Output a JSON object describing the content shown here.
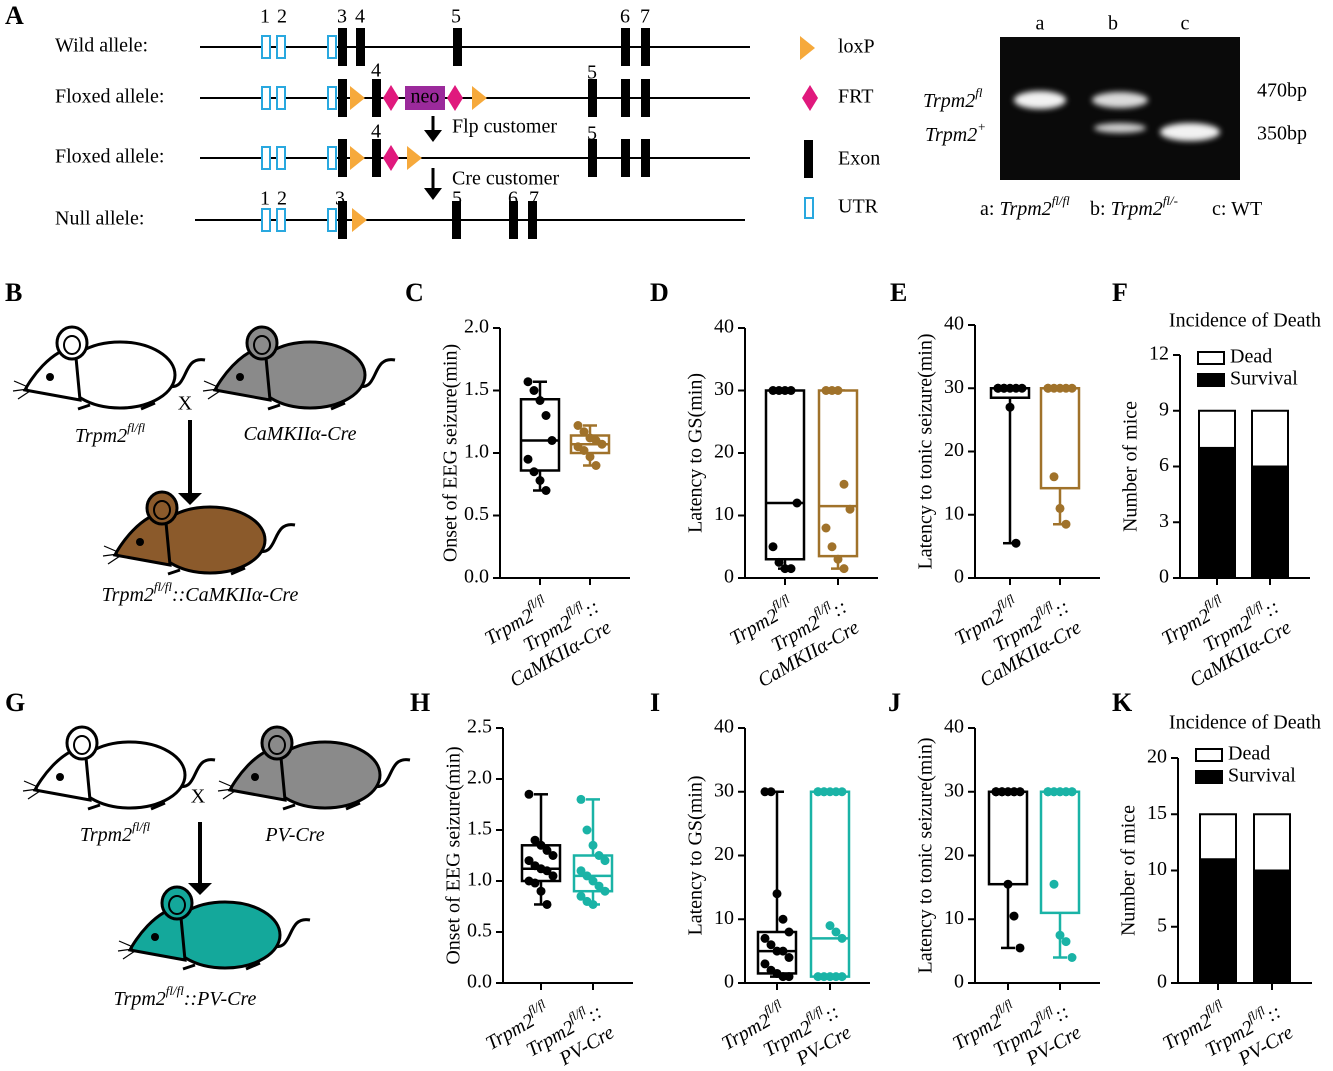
{
  "panel_A": {
    "letter": "A",
    "rows": [
      "Wild allele:",
      "Floxed allele:",
      "Floxed allele:",
      "Null allele:"
    ],
    "exon_labels": [
      [
        "1",
        "2",
        "3",
        "4",
        "5",
        "6",
        "7"
      ],
      [
        "4",
        "5"
      ],
      [
        "4",
        "5"
      ],
      [
        "1",
        "2",
        "3",
        "5",
        "6",
        "7"
      ]
    ],
    "neo": "neo",
    "steps": [
      "Flp customer",
      "Cre customer"
    ],
    "legend": [
      "loxP",
      "FRT",
      "Exon",
      "UTR"
    ],
    "gel": {
      "lanes": [
        "a",
        "b",
        "c"
      ],
      "bands": [
        {
          "name": "Trpm2",
          "sup": "fl"
        },
        {
          "name": "Trpm2",
          "sup": "+"
        }
      ],
      "sizes": [
        "470bp",
        "350bp"
      ],
      "key": [
        {
          "prefix": "a: ",
          "name": "Trpm2",
          "sup": "fl/fl"
        },
        {
          "prefix": "b: ",
          "name": "Trpm2",
          "sup": "fl/-"
        },
        {
          "text": "c: WT"
        }
      ]
    }
  },
  "panel_B": {
    "letter": "B",
    "parents": [
      {
        "name": "Trpm2",
        "sup": "fl/fl"
      },
      {
        "name": "CaMKIIα-Cre"
      }
    ],
    "cross": "X",
    "offspring": {
      "name": "Trpm2",
      "sup": "fl/fl",
      "rest": "::CaMKIIα-Cre"
    }
  },
  "panel_G": {
    "letter": "G",
    "parents": [
      {
        "name": "Trpm2",
        "sup": "fl/fl"
      },
      {
        "name": "PV-Cre"
      }
    ],
    "cross": "X",
    "offspring": {
      "name": "Trpm2",
      "sup": "fl/fl",
      "rest": "::PV-Cre"
    }
  },
  "chart_data": [
    {
      "type": "box",
      "letter": "C",
      "ylabel": "Onset of EEG seizure(min)",
      "ylim": [
        0,
        2
      ],
      "yticks": [
        {
          "value": 0,
          "label": "0.0"
        },
        {
          "value": 0.5,
          "label": "0.5"
        },
        {
          "value": 1,
          "label": "1.0"
        },
        {
          "value": 1.5,
          "label": "1.5"
        },
        {
          "value": 2,
          "label": "2.0"
        }
      ],
      "categories": [
        {
          "name": "Trpm2",
          "sup": "fl/fl"
        },
        {
          "name": "Trpm2",
          "sup": "fl/fl",
          "rest": "::",
          "line2": "CaMKIIα-Cre"
        }
      ],
      "groups": [
        {
          "color": "#000000",
          "min": 0.7,
          "q1": 0.86,
          "median": 1.1,
          "q3": 1.43,
          "max": 1.57,
          "points": [
            1.57,
            1.5,
            1.42,
            1.3,
            1.1,
            0.95,
            0.85,
            0.78,
            0.7
          ]
        },
        {
          "color": "#a0722a",
          "min": 0.9,
          "q1": 1.0,
          "median": 1.07,
          "q3": 1.14,
          "max": 1.22,
          "points": [
            1.22,
            1.17,
            1.12,
            1.1,
            1.07,
            1.05,
            1.02,
            0.97,
            0.9
          ]
        }
      ]
    },
    {
      "type": "box",
      "letter": "D",
      "ylabel": "Latency to GS(min)",
      "ylim": [
        0,
        40
      ],
      "yticks": [
        0,
        10,
        20,
        30,
        40
      ],
      "categories": [
        {
          "name": "Trpm2",
          "sup": "fl/fl"
        },
        {
          "name": "Trpm2",
          "sup": "fl/fl",
          "rest": "::",
          "line2": "CaMKIIα-Cre"
        }
      ],
      "groups": [
        {
          "color": "#000000",
          "min": 1.5,
          "q1": 3,
          "median": 12,
          "q3": 30,
          "max": 30,
          "points": [
            30,
            30,
            30,
            30,
            12,
            5,
            2.5,
            1.5,
            1.5
          ]
        },
        {
          "color": "#a0722a",
          "min": 1.5,
          "q1": 3.5,
          "median": 11.5,
          "q3": 30,
          "max": 30,
          "points": [
            30,
            30,
            30,
            15,
            11,
            8,
            5,
            3,
            1.5
          ]
        }
      ]
    },
    {
      "type": "box",
      "letter": "E",
      "ylabel": "Latency to tonic seizure(min)",
      "ylim": [
        0,
        40
      ],
      "yticks": [
        0,
        10,
        20,
        30,
        40
      ],
      "categories": [
        {
          "name": "Trpm2",
          "sup": "fl/fl"
        },
        {
          "name": "Trpm2",
          "sup": "fl/fl",
          "rest": "::",
          "line2": "CaMKIIα-Cre"
        }
      ],
      "groups": [
        {
          "color": "#000000",
          "min": 5.5,
          "q1": 28.5,
          "median": 30,
          "q3": 30,
          "max": 30,
          "points": [
            30,
            30,
            30,
            30,
            30,
            30,
            30,
            27,
            5.5
          ]
        },
        {
          "color": "#a0722a",
          "min": 8.5,
          "q1": 14.2,
          "median": 30,
          "q3": 30,
          "max": 30,
          "points": [
            30,
            30,
            30,
            30,
            30,
            30,
            16,
            11,
            8.5
          ]
        }
      ]
    },
    {
      "type": "stacked_bar",
      "letter": "F",
      "title": "Incidence of Death",
      "ylabel": "Number of mice",
      "ylim": [
        0,
        12
      ],
      "yticks": [
        0,
        3,
        6,
        9,
        12
      ],
      "categories": [
        {
          "name": "Trpm2",
          "sup": "fl/fl"
        },
        {
          "name": "Trpm2",
          "sup": "fl/fl",
          "rest": "::",
          "line2": "CaMKIIα-Cre"
        }
      ],
      "series": [
        {
          "name": "Survival",
          "color": "#000000",
          "values": [
            7,
            6
          ]
        },
        {
          "name": "Dead",
          "color": "#ffffff",
          "values": [
            2,
            3
          ]
        }
      ]
    },
    {
      "type": "box",
      "letter": "H",
      "ylabel": "Onset of EEG seizure(min)",
      "ylim": [
        0,
        2.5
      ],
      "yticks": [
        {
          "value": 0,
          "label": "0.0"
        },
        {
          "value": 0.5,
          "label": "0.5"
        },
        {
          "value": 1,
          "label": "1.0"
        },
        {
          "value": 1.5,
          "label": "1.5"
        },
        {
          "value": 2,
          "label": "2.0"
        },
        {
          "value": 2.5,
          "label": "2.5"
        }
      ],
      "categories": [
        {
          "name": "Trpm2",
          "sup": "fl/fl"
        },
        {
          "name": "Trpm2",
          "sup": "fl/fl",
          "rest": "::",
          "line2": "PV-Cre"
        }
      ],
      "groups": [
        {
          "color": "#000000",
          "min": 0.77,
          "q1": 1.0,
          "median": 1.12,
          "q3": 1.35,
          "max": 1.85,
          "points": [
            1.85,
            1.4,
            1.35,
            1.3,
            1.25,
            1.2,
            1.15,
            1.12,
            1.1,
            1.05,
            1.0,
            0.98,
            0.9,
            0.77
          ]
        },
        {
          "color": "#1ab3a6",
          "min": 0.77,
          "q1": 0.9,
          "median": 1.05,
          "q3": 1.25,
          "max": 1.8,
          "points": [
            1.8,
            1.5,
            1.35,
            1.25,
            1.2,
            1.1,
            1.05,
            1.0,
            0.95,
            0.9,
            0.85,
            0.8,
            0.77
          ]
        }
      ]
    },
    {
      "type": "box",
      "letter": "I",
      "ylabel": "Latency to GS(min)",
      "ylim": [
        0,
        40
      ],
      "yticks": [
        0,
        10,
        20,
        30,
        40
      ],
      "categories": [
        {
          "name": "Trpm2",
          "sup": "fl/fl"
        },
        {
          "name": "Trpm2",
          "sup": "fl/fl",
          "rest": "::",
          "line2": "PV-Cre"
        }
      ],
      "groups": [
        {
          "color": "#000000",
          "min": 1,
          "q1": 1.5,
          "median": 5,
          "q3": 8,
          "max": 30,
          "points": [
            30,
            30,
            14,
            10,
            8,
            7,
            6,
            5,
            5,
            4,
            3,
            2,
            1.5,
            1,
            1
          ]
        },
        {
          "color": "#1ab3a6",
          "min": 1,
          "q1": 1,
          "median": 7,
          "q3": 30,
          "max": 30,
          "points": [
            30,
            30,
            30,
            30,
            30,
            30,
            30,
            9,
            8,
            7,
            1,
            1,
            1,
            1,
            1
          ]
        }
      ]
    },
    {
      "type": "box",
      "letter": "J",
      "ylabel": "Latency to tonic seizure(min)",
      "ylim": [
        0,
        40
      ],
      "yticks": [
        0,
        10,
        20,
        30,
        40
      ],
      "categories": [
        {
          "name": "Trpm2",
          "sup": "fl/fl"
        },
        {
          "name": "Trpm2",
          "sup": "fl/fl",
          "rest": "::",
          "line2": "PV-Cre"
        }
      ],
      "groups": [
        {
          "color": "#000000",
          "min": 5.5,
          "q1": 15.5,
          "median": 30,
          "q3": 30,
          "max": 30,
          "points": [
            30,
            30,
            30,
            30,
            30,
            30,
            30,
            30,
            30,
            30,
            30,
            30,
            15.5,
            10.5,
            5.5
          ]
        },
        {
          "color": "#1ab3a6",
          "min": 4,
          "q1": 11,
          "median": 30,
          "q3": 30,
          "max": 30,
          "points": [
            30,
            30,
            30,
            30,
            30,
            30,
            30,
            30,
            30,
            30,
            30,
            15.5,
            7.5,
            6.5,
            4
          ]
        }
      ]
    },
    {
      "type": "stacked_bar",
      "letter": "K",
      "title": "Incidence of Death",
      "ylabel": "Number of mice",
      "ylim": [
        0,
        20
      ],
      "yticks": [
        0,
        5,
        10,
        15,
        20
      ],
      "categories": [
        {
          "name": "Trpm2",
          "sup": "fl/fl"
        },
        {
          "name": "Trpm2",
          "sup": "fl/fl",
          "rest": "::",
          "line2": "PV-Cre"
        }
      ],
      "series": [
        {
          "name": "Survival",
          "color": "#000000",
          "values": [
            11,
            10
          ]
        },
        {
          "name": "Dead",
          "color": "#ffffff",
          "values": [
            4,
            5
          ]
        }
      ]
    }
  ]
}
